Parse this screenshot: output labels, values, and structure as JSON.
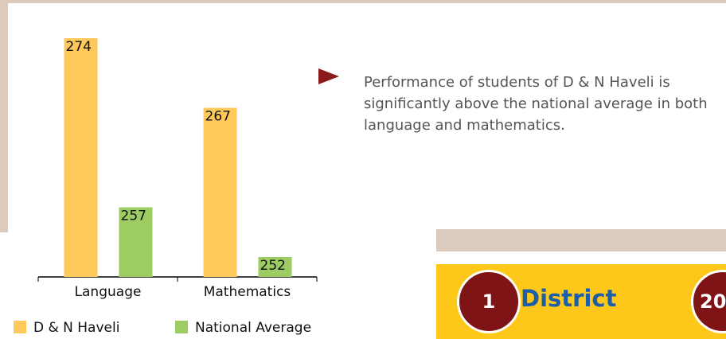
{
  "chart_data": {
    "type": "bar",
    "categories": [
      "Language",
      "Mathematics"
    ],
    "series": [
      {
        "name": "D & N Haveli",
        "color": "#fdc95a",
        "values": [
          274,
          267
        ]
      },
      {
        "name": "National Average",
        "color": "#9dcc63",
        "values": [
          257,
          252
        ]
      }
    ],
    "ylim": [
      250,
      276
    ]
  },
  "note": "Performance of students of D & N Haveli is significantly above the national average in both language and mathematics.",
  "card": {
    "number": "1",
    "label": "District",
    "next_number": "20"
  }
}
